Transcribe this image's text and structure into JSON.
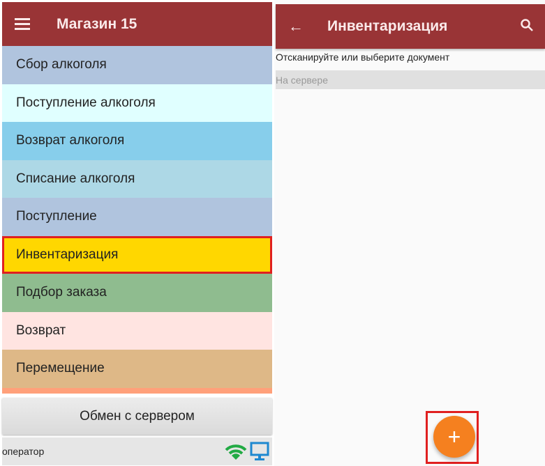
{
  "left": {
    "header": {
      "title": "Магазин 15",
      "menu_icon": "hamburger-icon"
    },
    "menu_items": [
      {
        "label": "Сбор алкоголя",
        "color": "#b0c4de"
      },
      {
        "label": "Поступление алкоголя",
        "color": "#e0ffff"
      },
      {
        "label": "Возврат алкоголя",
        "color": "#87ceeb"
      },
      {
        "label": "Списание алкоголя",
        "color": "#add8e6"
      },
      {
        "label": "Поступление",
        "color": "#b0c4de"
      },
      {
        "label": "Инвентаризация",
        "color": "#ffd700",
        "highlighted": true
      },
      {
        "label": "Подбор заказа",
        "color": "#8fbc8f"
      },
      {
        "label": "Возврат",
        "color": "#ffe4e1"
      },
      {
        "label": "Перемещение",
        "color": "#deb887"
      }
    ],
    "next_item_color": "#ffa07a",
    "sync_button": "Обмен с сервером",
    "footer": {
      "user": "оператор",
      "wifi_icon": "wifi-icon",
      "monitor_icon": "monitor-icon"
    }
  },
  "right": {
    "header": {
      "title": "Инвентаризация",
      "back_icon": "arrow-left-icon",
      "search_icon": "search-icon"
    },
    "prompt": "Отсканируйте или выберите документ",
    "section": "На сервере",
    "fab": {
      "label": "+",
      "color": "#f5801f",
      "highlighted": true
    }
  }
}
